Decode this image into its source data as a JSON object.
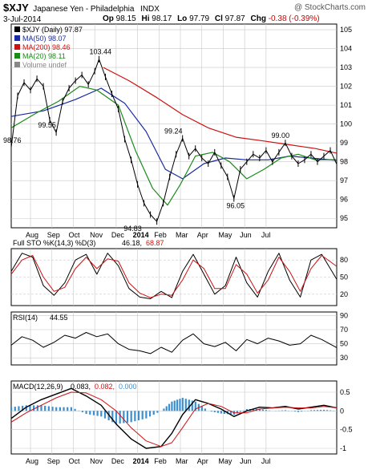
{
  "header": {
    "symbol": "$XJY",
    "name": "Japanese Yen - Philadelphia",
    "exchange": "INDX",
    "watermark": "@ StockCharts.com",
    "date": "3-Jul-2014",
    "op_label": "Op",
    "op": "98.15",
    "hi_label": "Hi",
    "hi": "98.17",
    "lo_label": "Lo",
    "lo": "97.79",
    "cl_label": "Cl",
    "cl": "97.87",
    "chg_label": "Chg",
    "chg": "-0.38 (-0.39%)"
  },
  "colors": {
    "price": "#000000",
    "ma50": "#1a2aa0",
    "ma200": "#cc1111",
    "ma20": "#1a8a1a",
    "grid": "#c8c8c8",
    "macd_hist": "#3b8fd0"
  },
  "chart_data": [
    {
      "id": "price",
      "type": "line",
      "title": "$XJY (Daily) 97.87",
      "ylim": [
        94.5,
        105.3
      ],
      "yticks": [
        95,
        96,
        97,
        98,
        99,
        100,
        101,
        102,
        103,
        104,
        105
      ],
      "x_months": [
        "Aug",
        "Sep",
        "Oct",
        "Nov",
        "Dec",
        "2014",
        "Feb",
        "Mar",
        "Apr",
        "May",
        "Jun",
        "Jul"
      ],
      "legend": [
        {
          "label": "$XJY (Daily) 97.87",
          "color": "#000000"
        },
        {
          "label": "MA(50) 98.07",
          "color": "#1a2aa0"
        },
        {
          "label": "MA(200) 98.46",
          "color": "#cc1111"
        },
        {
          "label": "MA(20) 98.11",
          "color": "#1a8a1a"
        },
        {
          "label": "Volume undef",
          "color": "#888888"
        }
      ],
      "annotations": [
        {
          "text": "103.44",
          "x": 4.1,
          "y": 103.44
        },
        {
          "text": "99.55",
          "x": 1.7,
          "y": 99.55
        },
        {
          "text": "98.76",
          "x": 0.0,
          "y": 98.76
        },
        {
          "text": "94.83",
          "x": 5.7,
          "y": 94.83
        },
        {
          "text": "99.24",
          "x": 7.6,
          "y": 99.24
        },
        {
          "text": "96.05",
          "x": 10.5,
          "y": 96.05
        },
        {
          "text": "99.00",
          "x": 12.6,
          "y": 99.0
        }
      ],
      "series": [
        {
          "name": "$XJY",
          "x": [
            0,
            0.3,
            0.6,
            0.9,
            1.2,
            1.5,
            1.8,
            2.1,
            2.4,
            2.7,
            3.0,
            3.3,
            3.6,
            3.9,
            4.1,
            4.4,
            4.7,
            5.0,
            5.3,
            5.6,
            5.9,
            6.2,
            6.5,
            6.8,
            7.1,
            7.4,
            7.7,
            8.0,
            8.3,
            8.6,
            8.9,
            9.2,
            9.5,
            9.8,
            10.1,
            10.4,
            10.7,
            11.0,
            11.3,
            11.6,
            11.9,
            12.2,
            12.5,
            12.8,
            13.1,
            13.4,
            13.7,
            14.0,
            14.3,
            14.6,
            14.9,
            15.2
          ],
          "y": [
            98.76,
            101.5,
            102.2,
            101.8,
            102.4,
            102.0,
            100.2,
            99.55,
            101.2,
            101.9,
            102.3,
            102.6,
            102.1,
            102.8,
            103.44,
            102.5,
            101.6,
            100.8,
            99.2,
            98.1,
            96.8,
            95.8,
            95.2,
            94.83,
            95.8,
            97.2,
            98.4,
            99.24,
            98.3,
            98.7,
            98.2,
            97.9,
            98.5,
            97.8,
            97.2,
            96.05,
            97.6,
            98.0,
            98.4,
            98.2,
            98.6,
            98.0,
            98.5,
            99.0,
            98.3,
            97.9,
            98.1,
            98.4,
            98.0,
            98.3,
            98.6,
            97.87
          ]
        },
        {
          "name": "MA(50) 98.07",
          "x": [
            0.0,
            1.5,
            3.0,
            4.2,
            5.3,
            6.3,
            7.2,
            8.0,
            9.0,
            10.0,
            11.0,
            12.0,
            13.0,
            14.0,
            15.2
          ],
          "y": [
            100.4,
            100.7,
            101.3,
            101.9,
            101.1,
            99.6,
            97.6,
            97.1,
            97.9,
            98.2,
            98.1,
            98.1,
            98.3,
            98.2,
            98.07
          ]
        },
        {
          "name": "MA(200) 98.46",
          "x": [
            4.3,
            5.5,
            6.8,
            8.0,
            9.2,
            10.5,
            11.8,
            13.0,
            14.2,
            15.2
          ],
          "y": [
            103.0,
            102.3,
            101.4,
            100.5,
            99.8,
            99.3,
            99.1,
            98.9,
            98.7,
            98.46
          ]
        },
        {
          "name": "MA(20) 98.11",
          "x": [
            0.0,
            1.2,
            2.2,
            3.2,
            4.0,
            5.0,
            5.8,
            6.6,
            7.3,
            7.9,
            8.6,
            9.4,
            10.2,
            11.0,
            11.8,
            12.6,
            13.4,
            14.2,
            15.2
          ],
          "y": [
            99.8,
            100.6,
            101.2,
            102.0,
            101.8,
            101.0,
            98.6,
            96.6,
            95.7,
            96.8,
            98.3,
            98.5,
            98.0,
            97.1,
            97.6,
            98.2,
            98.4,
            98.1,
            98.11
          ]
        }
      ]
    },
    {
      "id": "sto",
      "type": "line",
      "title": "Full STO %K(14,3) %D(3) 46.18, 68.87",
      "label_full": "Full STO %K(14,3) %D(3)",
      "k_value": "46.18",
      "d_value": "68.87",
      "ylim": [
        0,
        100
      ],
      "yticks": [
        20,
        50,
        80
      ],
      "series": [
        {
          "name": "%K",
          "x": [
            0,
            0.5,
            1.0,
            1.5,
            2.0,
            2.5,
            3.0,
            3.5,
            4.0,
            4.5,
            5.0,
            5.5,
            6.0,
            6.5,
            7.0,
            7.5,
            8.0,
            8.5,
            9.0,
            9.5,
            10.0,
            10.5,
            11.0,
            11.5,
            12.0,
            12.5,
            13.0,
            13.5,
            14.0,
            14.5,
            15.2
          ],
          "y": [
            60,
            92,
            85,
            35,
            18,
            40,
            80,
            90,
            55,
            92,
            70,
            30,
            15,
            12,
            25,
            14,
            60,
            90,
            55,
            20,
            35,
            85,
            40,
            15,
            60,
            92,
            45,
            15,
            80,
            90,
            46.18
          ]
        },
        {
          "name": "%D",
          "x": [
            0,
            0.5,
            1.0,
            1.5,
            2.0,
            2.5,
            3.0,
            3.5,
            4.0,
            4.5,
            5.0,
            5.5,
            6.0,
            6.5,
            7.0,
            7.5,
            8.0,
            8.5,
            9.0,
            9.5,
            10.0,
            10.5,
            11.0,
            11.5,
            12.0,
            12.5,
            13.0,
            13.5,
            14.0,
            14.5,
            15.2
          ],
          "y": [
            55,
            80,
            88,
            50,
            25,
            32,
            65,
            85,
            65,
            82,
            78,
            40,
            22,
            14,
            20,
            18,
            45,
            80,
            65,
            30,
            30,
            72,
            55,
            22,
            45,
            85,
            60,
            25,
            65,
            88,
            68.87
          ]
        }
      ]
    },
    {
      "id": "rsi",
      "type": "line",
      "title": "RSI(14) 44.55",
      "label": "RSI(14)",
      "value": "44.55",
      "ylim": [
        20,
        95
      ],
      "yticks": [
        30,
        50,
        70,
        90
      ],
      "series": [
        {
          "name": "RSI(14)",
          "x": [
            0,
            0.5,
            1.0,
            1.5,
            2.0,
            2.5,
            3.0,
            3.5,
            4.0,
            4.5,
            5.0,
            5.5,
            6.0,
            6.5,
            7.0,
            7.5,
            8.0,
            8.5,
            9.0,
            9.5,
            10.0,
            10.5,
            11.0,
            11.5,
            12.0,
            12.5,
            13.0,
            13.5,
            14.0,
            14.5,
            15.2
          ],
          "y": [
            48,
            60,
            55,
            45,
            52,
            62,
            58,
            66,
            60,
            64,
            50,
            42,
            40,
            36,
            45,
            38,
            55,
            64,
            50,
            46,
            52,
            40,
            56,
            50,
            58,
            54,
            48,
            50,
            62,
            56,
            44.55
          ]
        }
      ]
    },
    {
      "id": "macd",
      "type": "line",
      "title": "MACD(12,26,9) 0.083, 0.082, 0.000",
      "label": "MACD(12,26,9)",
      "macd_value": "0.083",
      "signal_value": "0.082",
      "hist_value": "0.000",
      "ylim": [
        -1.15,
        0.8
      ],
      "yticks": [
        -1.0,
        -0.5,
        0.0,
        0.5
      ],
      "x_months": [
        "Aug",
        "Sep",
        "Oct",
        "Nov",
        "Dec",
        "2014",
        "Feb",
        "Mar",
        "Apr",
        "May",
        "Jun",
        "Jul"
      ],
      "series": [
        {
          "name": "MACD",
          "x": [
            0,
            0.7,
            1.4,
            2.1,
            2.8,
            3.5,
            4.2,
            4.9,
            5.6,
            6.3,
            7.0,
            7.5,
            8.0,
            8.6,
            9.2,
            9.8,
            10.4,
            11.0,
            11.6,
            12.2,
            12.8,
            13.4,
            14.0,
            14.6,
            15.2
          ],
          "y": [
            -0.2,
            0.1,
            0.3,
            0.45,
            0.6,
            0.4,
            0.15,
            -0.35,
            -0.75,
            -1.0,
            -0.95,
            -0.6,
            -0.1,
            0.3,
            0.2,
            0.05,
            -0.15,
            0.0,
            0.1,
            0.08,
            0.12,
            0.05,
            0.1,
            0.15,
            0.083
          ]
        },
        {
          "name": "Signal",
          "x": [
            0,
            0.7,
            1.4,
            2.1,
            2.8,
            3.5,
            4.2,
            4.9,
            5.6,
            6.3,
            7.0,
            7.5,
            8.0,
            8.6,
            9.2,
            9.8,
            10.4,
            11.0,
            11.6,
            12.2,
            12.8,
            13.4,
            14.0,
            14.6,
            15.2
          ],
          "y": [
            -0.3,
            -0.05,
            0.15,
            0.35,
            0.5,
            0.48,
            0.3,
            0.0,
            -0.45,
            -0.8,
            -0.95,
            -0.85,
            -0.45,
            0.05,
            0.2,
            0.12,
            -0.05,
            -0.05,
            0.05,
            0.08,
            0.1,
            0.08,
            0.08,
            0.12,
            0.082
          ]
        }
      ]
    }
  ]
}
